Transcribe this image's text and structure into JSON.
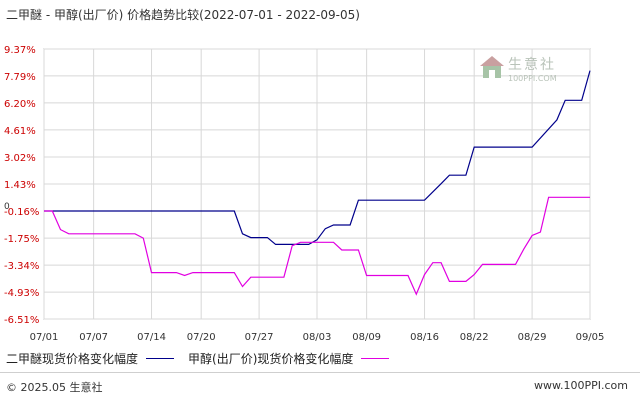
{
  "header": {
    "title": "二甲醚 - 甲醇(出厂价) 价格趋势比较(2022-07-01 - 2022-09-05)"
  },
  "watermark": {
    "name": "生意社",
    "site": "100PPI.COM"
  },
  "chart_data": {
    "type": "line",
    "title": "二甲醚 - 甲醇(出厂价) 价格趋势比较(2022-07-01 - 2022-09-05)",
    "xlabel": "",
    "ylabel": "",
    "x_ticks": [
      "07/01",
      "07/07",
      "07/14",
      "07/20",
      "07/27",
      "08/03",
      "08/09",
      "08/16",
      "08/22",
      "08/29",
      "09/05"
    ],
    "y_ticks": [
      "9.37%",
      "7.79%",
      "6.20%",
      "4.61%",
      "3.02%",
      "1.43%",
      "-0.16%",
      "-1.75%",
      "-3.34%",
      "-4.93%",
      "-6.51%"
    ],
    "y_tick_values": [
      9.37,
      7.79,
      6.2,
      4.61,
      3.02,
      1.43,
      -0.16,
      -1.75,
      -3.34,
      -4.93,
      -6.51
    ],
    "zero_label": "0",
    "ylim": [
      -6.51,
      9.37
    ],
    "x_range": [
      "2022-07-01",
      "2022-09-05"
    ],
    "grid": true,
    "legend_position": "bottom",
    "series": [
      {
        "name": "二甲醚现货价格变化幅度",
        "color": "#00008b",
        "points": [
          [
            "2022-07-01",
            -0.16
          ],
          [
            "2022-07-24",
            -0.16
          ],
          [
            "2022-07-25",
            -1.5
          ],
          [
            "2022-07-26",
            -1.72
          ],
          [
            "2022-07-28",
            -1.72
          ],
          [
            "2022-07-29",
            -2.12
          ],
          [
            "2022-08-02",
            -2.12
          ],
          [
            "2022-08-03",
            -1.85
          ],
          [
            "2022-08-04",
            -1.2
          ],
          [
            "2022-08-05",
            -0.98
          ],
          [
            "2022-08-07",
            -0.98
          ],
          [
            "2022-08-08",
            0.48
          ],
          [
            "2022-08-16",
            0.48
          ],
          [
            "2022-08-18",
            1.45
          ],
          [
            "2022-08-19",
            1.95
          ],
          [
            "2022-08-21",
            1.95
          ],
          [
            "2022-08-22",
            3.6
          ],
          [
            "2022-08-29",
            3.6
          ],
          [
            "2022-09-01",
            5.2
          ],
          [
            "2022-09-02",
            6.35
          ],
          [
            "2022-09-04",
            6.35
          ],
          [
            "2022-09-05",
            8.1
          ]
        ]
      },
      {
        "name": "甲醇(出厂价)现货价格变化幅度",
        "color": "#e100e1",
        "points": [
          [
            "2022-07-01",
            -0.16
          ],
          [
            "2022-07-02",
            -0.16
          ],
          [
            "2022-07-03",
            -1.25
          ],
          [
            "2022-07-04",
            -1.5
          ],
          [
            "2022-07-12",
            -1.5
          ],
          [
            "2022-07-13",
            -1.75
          ],
          [
            "2022-07-14",
            -3.78
          ],
          [
            "2022-07-17",
            -3.78
          ],
          [
            "2022-07-18",
            -3.95
          ],
          [
            "2022-07-19",
            -3.78
          ],
          [
            "2022-07-24",
            -3.78
          ],
          [
            "2022-07-25",
            -4.6
          ],
          [
            "2022-07-26",
            -4.05
          ],
          [
            "2022-07-30",
            -4.05
          ],
          [
            "2022-07-31",
            -2.2
          ],
          [
            "2022-08-01",
            -2.0
          ],
          [
            "2022-08-05",
            -2.0
          ],
          [
            "2022-08-06",
            -2.45
          ],
          [
            "2022-08-08",
            -2.45
          ],
          [
            "2022-08-09",
            -3.95
          ],
          [
            "2022-08-14",
            -3.95
          ],
          [
            "2022-08-15",
            -5.05
          ],
          [
            "2022-08-16",
            -3.9
          ],
          [
            "2022-08-17",
            -3.2
          ],
          [
            "2022-08-18",
            -3.2
          ],
          [
            "2022-08-19",
            -4.3
          ],
          [
            "2022-08-21",
            -4.3
          ],
          [
            "2022-08-22",
            -3.9
          ],
          [
            "2022-08-23",
            -3.3
          ],
          [
            "2022-08-27",
            -3.3
          ],
          [
            "2022-08-28",
            -2.4
          ],
          [
            "2022-08-29",
            -1.6
          ],
          [
            "2022-08-30",
            -1.4
          ],
          [
            "2022-08-31",
            0.65
          ],
          [
            "2022-09-05",
            0.65
          ]
        ]
      }
    ]
  },
  "legend": {
    "items": [
      {
        "label": "二甲醚现货价格变化幅度",
        "color": "#00008b"
      },
      {
        "label": "甲醇(出厂价)现货价格变化幅度",
        "color": "#e100e1"
      }
    ]
  },
  "footer": {
    "copyright": "© 2025.05 生意社",
    "site": "www.100PPI.com"
  }
}
